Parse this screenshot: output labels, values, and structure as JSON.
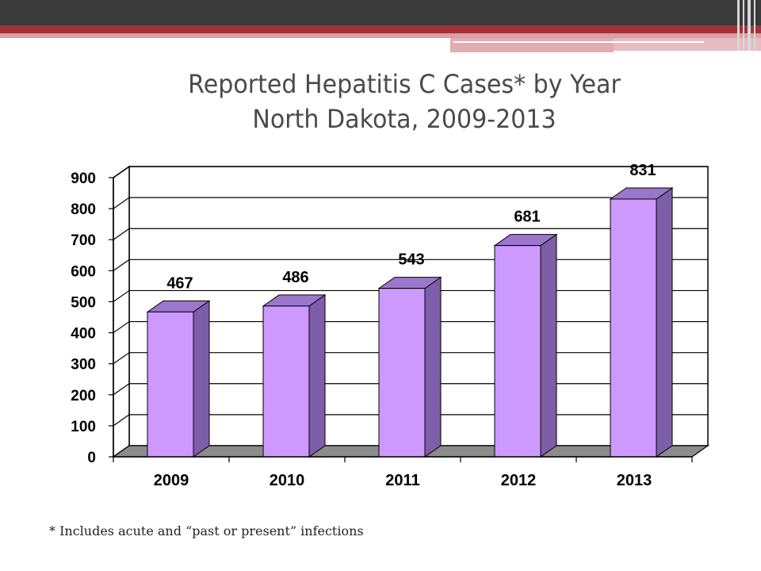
{
  "slide": {
    "title_line1": "Reported Hepatitis C Cases* by Year",
    "title_line2": "North Dakota, 2009-2013",
    "footnote": "* Includes acute and “past or present” infections"
  },
  "colors": {
    "topbar": "#3a3a3a",
    "accent_red": "#a3313c",
    "accent_pink": "#d9a0a6",
    "bar_front": "#cc99ff",
    "bar_side": "#7d5ea8",
    "bar_top": "#9b77cc",
    "floor": "#8c8c8c"
  },
  "chart_data": {
    "type": "bar",
    "categories": [
      "2009",
      "2010",
      "2011",
      "2012",
      "2013"
    ],
    "values": [
      467,
      486,
      543,
      681,
      831
    ],
    "data_labels": [
      "467",
      "486",
      "543",
      "681",
      "831"
    ],
    "title": "Reported Hepatitis C Cases* by Year North Dakota, 2009-2013",
    "xlabel": "",
    "ylabel": "",
    "ylim": [
      0,
      900
    ],
    "yticks": [
      0,
      100,
      200,
      300,
      400,
      500,
      600,
      700,
      800,
      900
    ],
    "ytick_labels": [
      "0",
      "100",
      "200",
      "300",
      "400",
      "500",
      "600",
      "700",
      "800",
      "900"
    ],
    "grid": true,
    "legend": "none",
    "style": "3d-column"
  }
}
